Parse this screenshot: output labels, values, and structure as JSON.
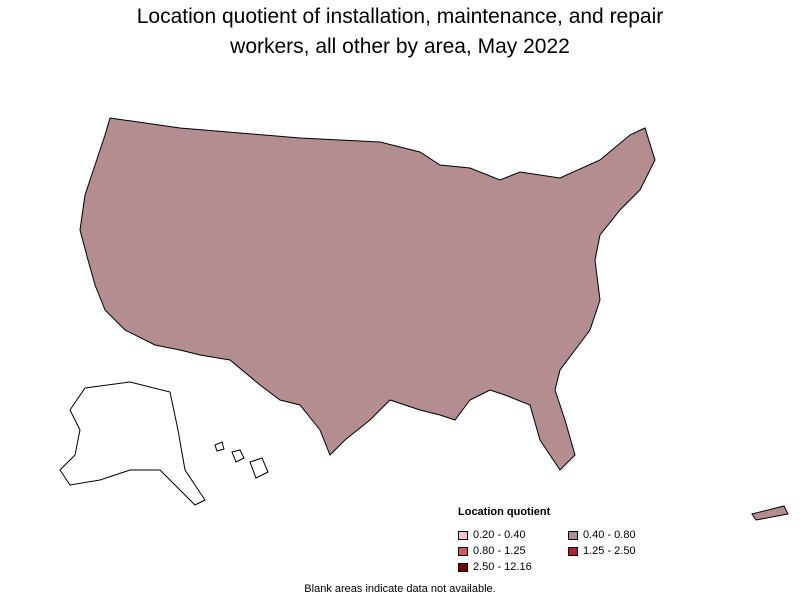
{
  "title_line1": "Location quotient of installation, maintenance, and repair",
  "title_line2": "workers, all other by area, May 2022",
  "colors": {
    "q1": "#fbbfc6",
    "q2": "#b38d90",
    "q3": "#d9525c",
    "q4": "#b0202a",
    "q5": "#7a0000",
    "blank": "#ffffff",
    "border": "#000000"
  },
  "legend": {
    "title": "Location quotient",
    "items": [
      {
        "label": "0.20 - 0.40",
        "color": "#fbbfc6"
      },
      {
        "label": "0.40 - 0.80",
        "color": "#b38d90"
      },
      {
        "label": "0.80 - 1.25",
        "color": "#d9525c"
      },
      {
        "label": "1.25 - 2.50",
        "color": "#b0202a"
      },
      {
        "label": "2.50 - 12.16",
        "color": "#7a0000"
      }
    ]
  },
  "note": "Blank areas indicate data not available."
}
